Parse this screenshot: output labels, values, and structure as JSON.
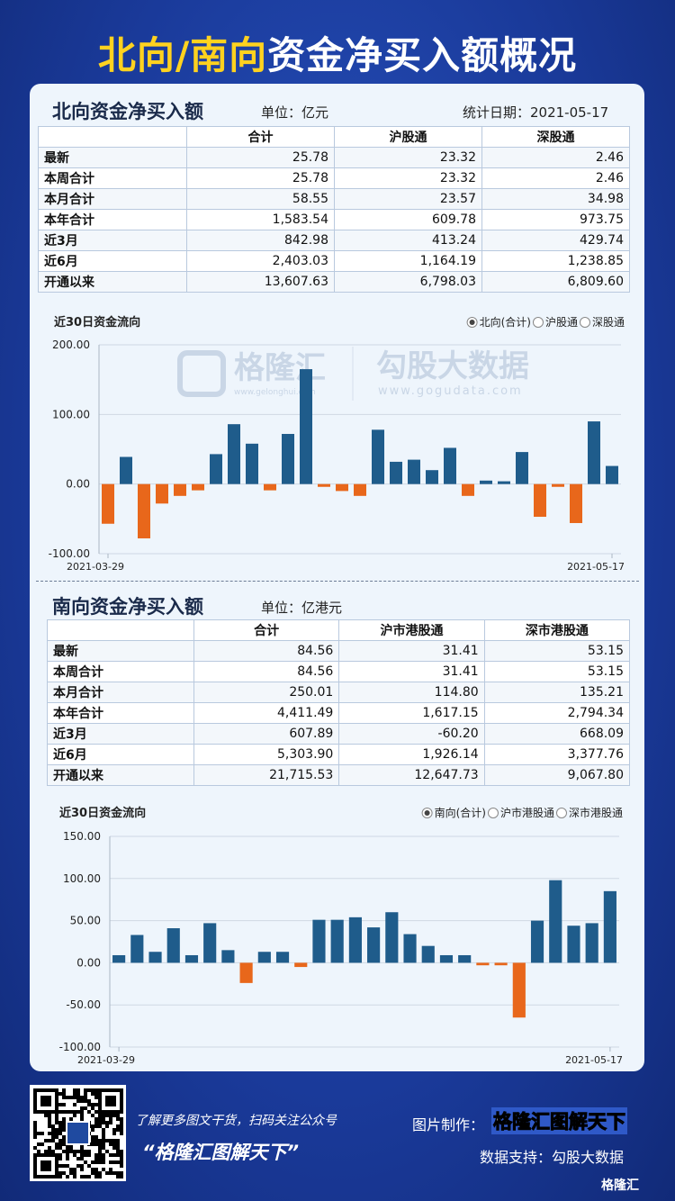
{
  "header": {
    "title_highlight": "北向/南向",
    "title_rest": "资金净买入额概况"
  },
  "north": {
    "title": "北向资金净买入额",
    "unit": "单位：亿元",
    "date": "统计日期：2021-05-17",
    "table": {
      "columns": [
        "合计",
        "沪股通",
        "深股通"
      ],
      "rows": [
        [
          "最新",
          "25.78",
          "23.32",
          "2.46"
        ],
        [
          "本周合计",
          "25.78",
          "23.32",
          "2.46"
        ],
        [
          "本月合计",
          "58.55",
          "23.57",
          "34.98"
        ],
        [
          "本年合计",
          "1,583.54",
          "609.78",
          "973.75"
        ],
        [
          "近3月",
          "842.98",
          "413.24",
          "429.74"
        ],
        [
          "近6月",
          "2,403.03",
          "1,164.19",
          "1,238.85"
        ],
        [
          "开通以来",
          "13,607.63",
          "6,798.03",
          "6,809.60"
        ]
      ]
    }
  },
  "south": {
    "title": "南向资金净买入额",
    "unit": "单位：亿港元",
    "table": {
      "columns": [
        "合计",
        "沪市港股通",
        "深市港股通"
      ],
      "rows": [
        [
          "最新",
          "84.56",
          "31.41",
          "53.15"
        ],
        [
          "本周合计",
          "84.56",
          "31.41",
          "53.15"
        ],
        [
          "本月合计",
          "250.01",
          "114.80",
          "135.21"
        ],
        [
          "本年合计",
          "4,411.49",
          "1,617.15",
          "2,794.34"
        ],
        [
          "近3月",
          "607.89",
          "-60.20",
          "668.09"
        ],
        [
          "近6月",
          "5,303.90",
          "1,926.14",
          "3,377.76"
        ],
        [
          "开通以来",
          "21,715.53",
          "12,647.73",
          "9,067.80"
        ]
      ]
    }
  },
  "watermark": {
    "brand": "格隆汇",
    "brand_url": "www.gelonghui.com",
    "partner": "勾股大数据",
    "partner_url": "www.gogudata.com"
  },
  "chart_data": [
    {
      "type": "bar",
      "title": "近30日资金流向",
      "categories": [
        "2021-03-29",
        null,
        null,
        null,
        null,
        null,
        null,
        null,
        null,
        null,
        null,
        null,
        null,
        null,
        null,
        null,
        null,
        null,
        null,
        null,
        null,
        null,
        null,
        null,
        null,
        null,
        null,
        null,
        "2021-05-17"
      ],
      "series": [
        {
          "name": "北向(合计)",
          "color": "#1f5c8b",
          "negative_color": "#e8671b",
          "values": [
            -57,
            39,
            -78,
            -28,
            -17,
            -9,
            43,
            86,
            58,
            -9,
            72,
            165,
            -4,
            -10,
            -17,
            78,
            32,
            35,
            20,
            52,
            -17,
            5,
            4,
            46,
            -47,
            -4,
            -56,
            90,
            26
          ]
        }
      ],
      "legend_options": [
        "沪股通",
        "深股通"
      ],
      "ylim": [
        -100,
        200
      ],
      "yticks": [
        {
          "value": -100,
          "label": "-100.00"
        },
        {
          "value": 0,
          "label": "0.00"
        },
        {
          "value": 100,
          "label": "100.00"
        },
        {
          "value": 200,
          "label": "200.00"
        }
      ],
      "grid": true
    },
    {
      "type": "bar",
      "title": "近30日资金流向",
      "categories": [
        "2021-03-29",
        null,
        null,
        null,
        null,
        null,
        null,
        null,
        null,
        null,
        null,
        null,
        null,
        null,
        null,
        null,
        null,
        null,
        null,
        null,
        null,
        null,
        null,
        null,
        null,
        null,
        null,
        "2021-05-17"
      ],
      "series": [
        {
          "name": "南向(合计)",
          "color": "#1f5c8b",
          "negative_color": "#e8671b",
          "values": [
            9,
            33,
            13,
            41,
            9,
            47,
            15,
            -24,
            13,
            13,
            -5,
            51,
            51,
            54,
            42,
            60,
            34,
            20,
            9,
            9,
            -3,
            -3,
            -65,
            50,
            98,
            44,
            47,
            85
          ]
        }
      ],
      "legend_options": [
        "沪市港股通",
        "深市港股通"
      ],
      "ylim": [
        -100,
        150
      ],
      "yticks": [
        {
          "value": -100,
          "label": "-100.00"
        },
        {
          "value": -50,
          "label": "-50.00"
        },
        {
          "value": 0,
          "label": "0.00"
        },
        {
          "value": 50,
          "label": "50.00"
        },
        {
          "value": 100,
          "label": "100.00"
        },
        {
          "value": 150,
          "label": "150.00"
        }
      ],
      "grid": true
    }
  ],
  "footer": {
    "promo": "了解更多图文干货，扫码关注公众号",
    "account": "“格隆汇图解天下”",
    "made_by_label": "图片制作：",
    "made_by": "格隆汇图解天下",
    "data_support": "数据支持：勾股大数据",
    "corner_logo": "格隆汇"
  }
}
